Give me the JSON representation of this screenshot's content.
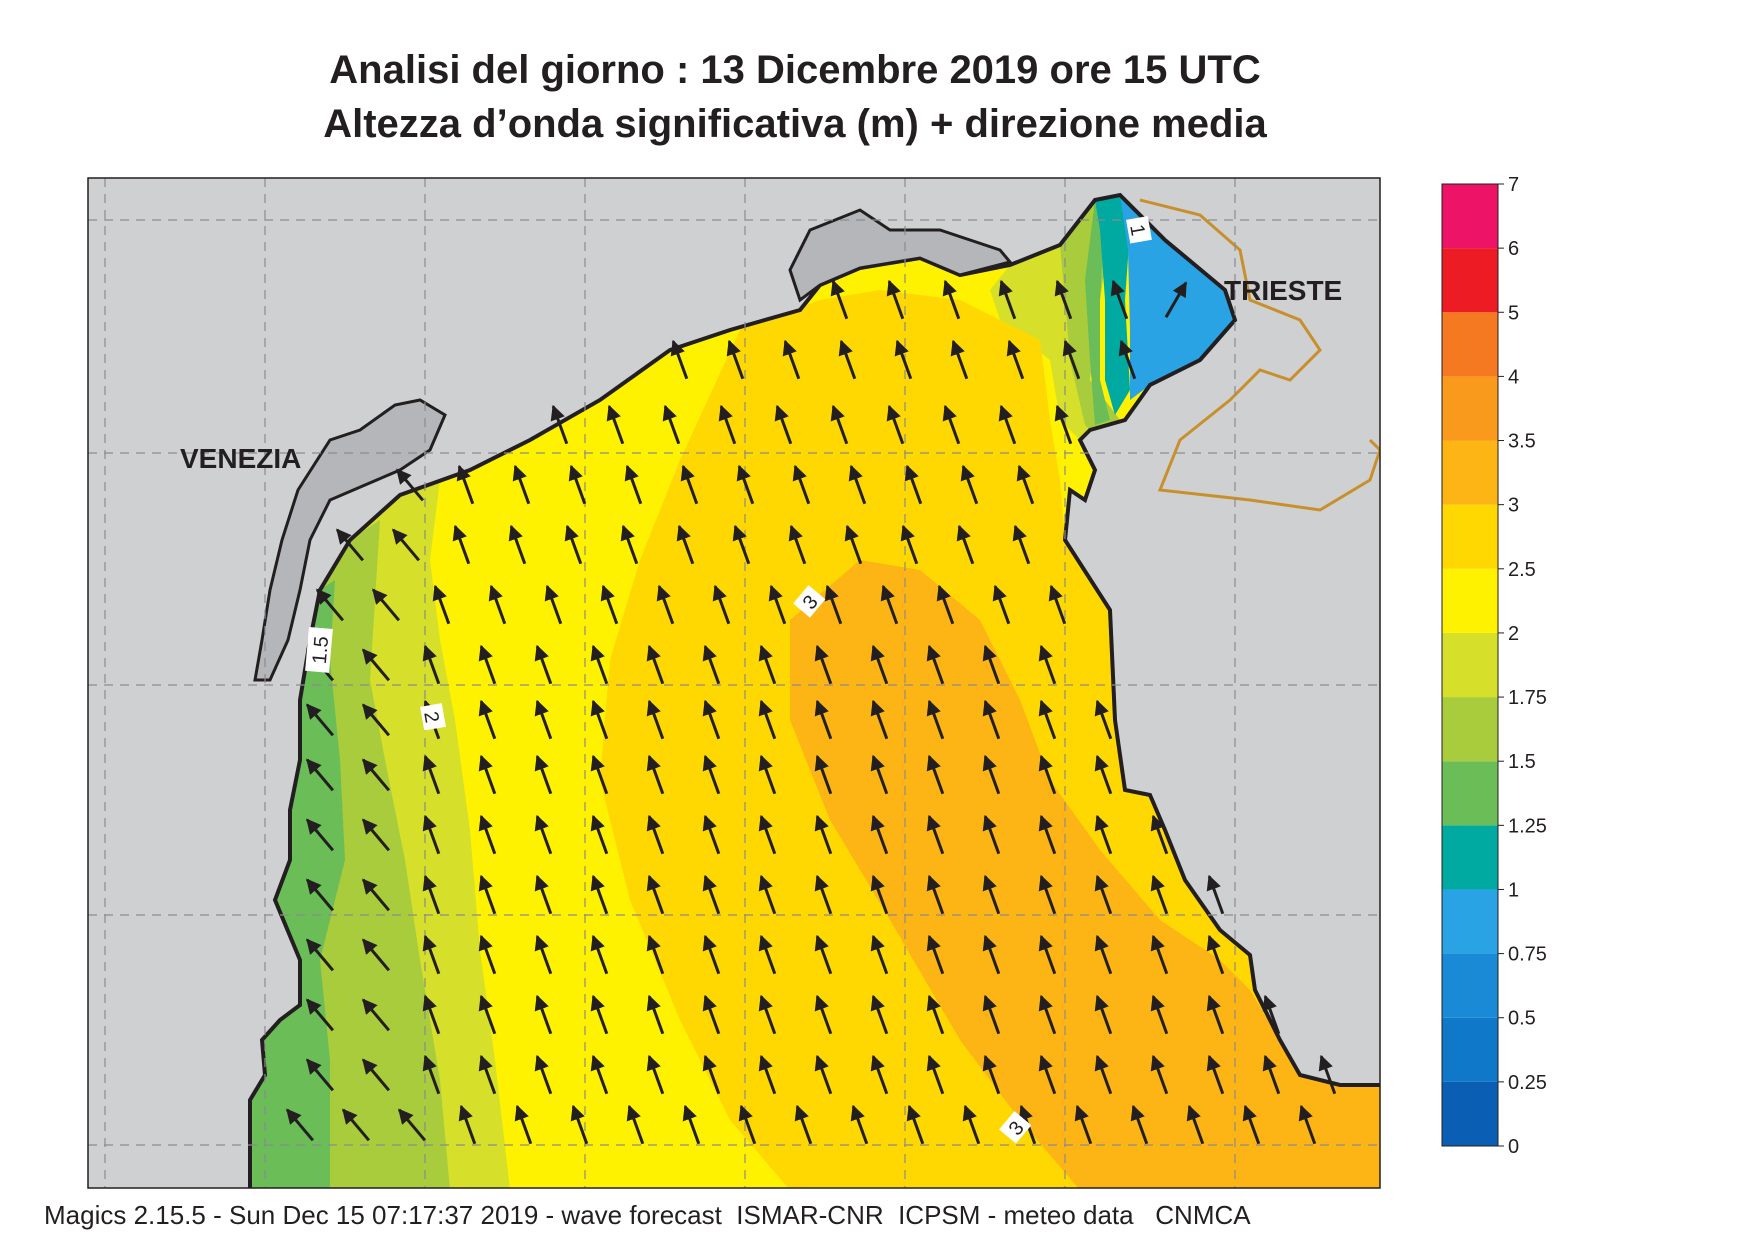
{
  "title_line1": "Analisi del giorno :  13 Dicembre  2019   ore 15 UTC",
  "title_line2": "Altezza d’onda significativa (m) + direzione media",
  "footer": "Magics 2.15.5 - Sun Dec 15 07:17:37 2019 - wave forecast  ISMAR-CNR  ICPSM - meteo data   CNMCA",
  "places": {
    "venezia": "VENEZIA",
    "trieste": "TRIESTE"
  },
  "contour_labels": {
    "c1": "1",
    "c15": "1.5",
    "c2": "2",
    "c3a": "3",
    "c3b": "3"
  },
  "colorbar": {
    "labels": [
      "0",
      "0.25",
      "0.5",
      "0.75",
      "1",
      "1.25",
      "1.5",
      "1.75",
      "2",
      "2.5",
      "3",
      "3.5",
      "4",
      "5",
      "6",
      "7"
    ],
    "colors": [
      "#0a5fb4",
      "#0f78c9",
      "#1b8ad6",
      "#29a3e3",
      "#00aaa0",
      "#6bbd58",
      "#a8cc3c",
      "#d6df2a",
      "#fff200",
      "#fed800",
      "#fdb515",
      "#f99a1c",
      "#f47920",
      "#ed1c24",
      "#ed1366"
    ]
  },
  "colors": {
    "land": "#cfd0d2",
    "lagoon": "#b4b6b9",
    "border": "#c8902c",
    "grid": "#8a8c8e"
  }
}
